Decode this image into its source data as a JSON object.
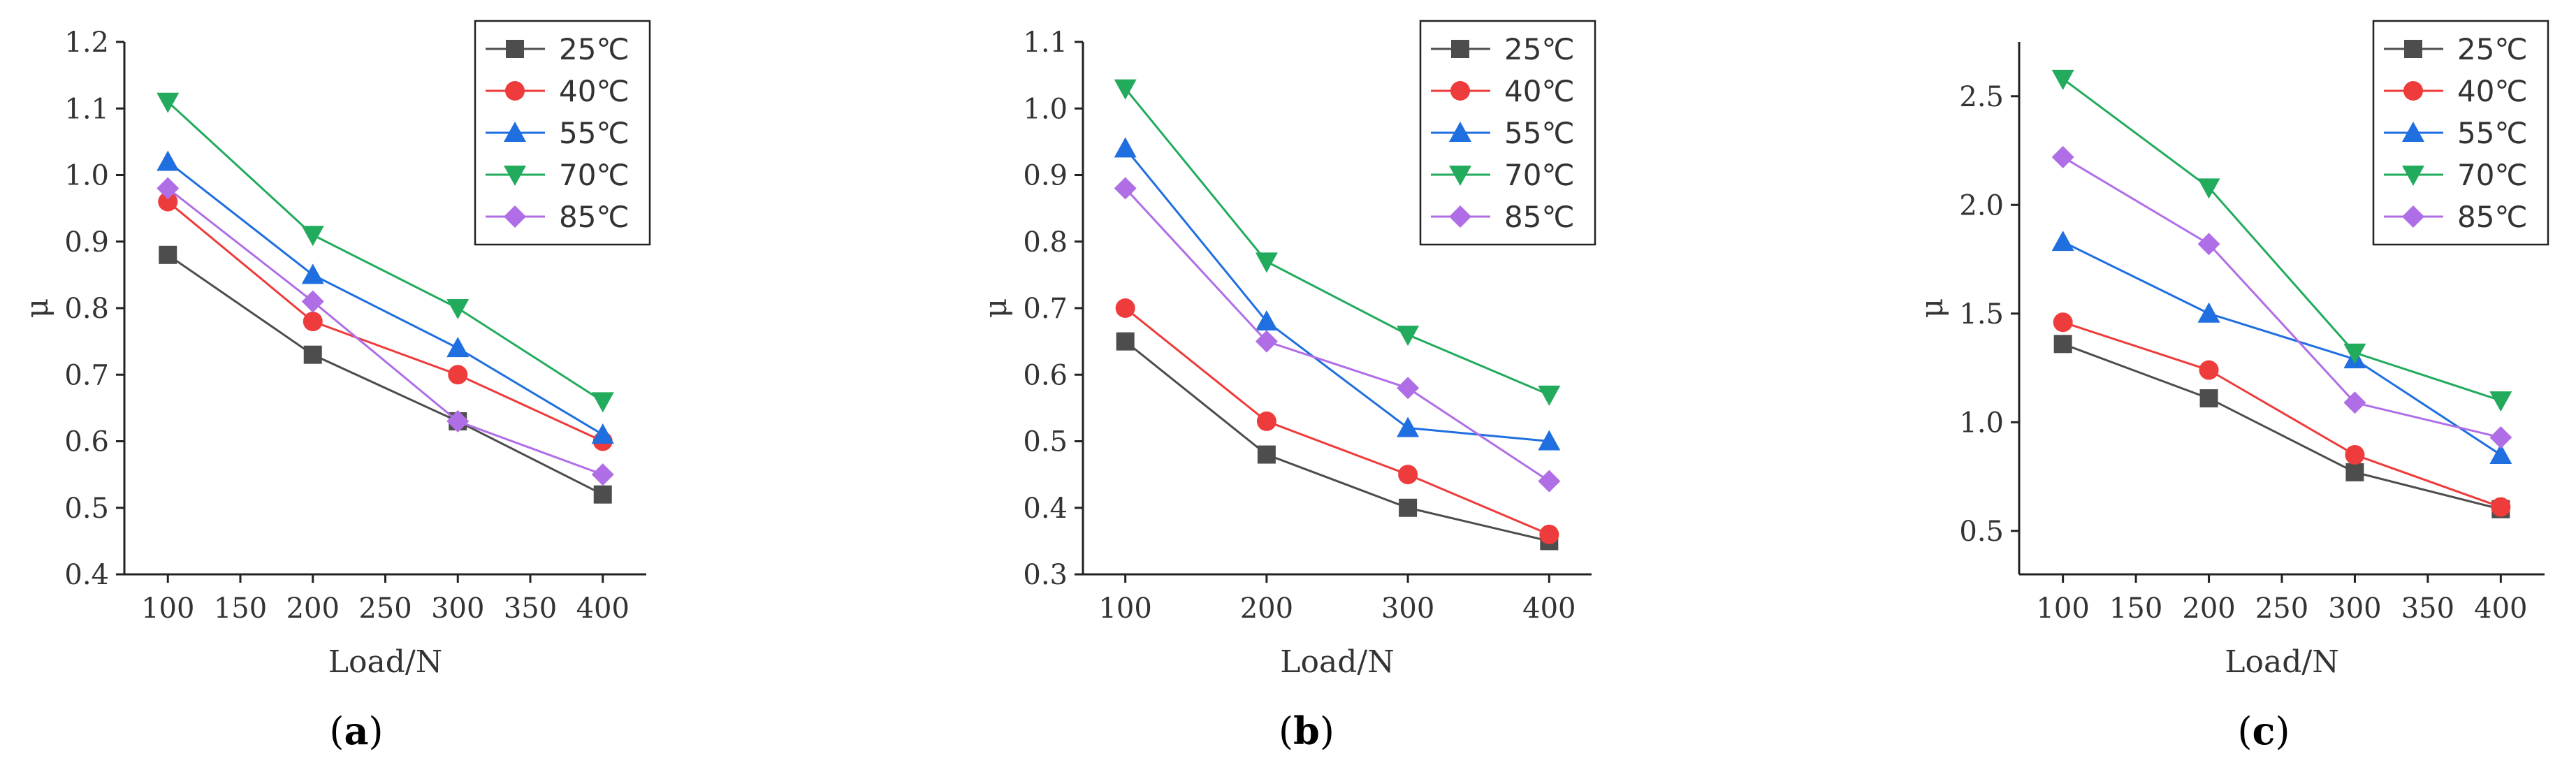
{
  "chart_data": [
    {
      "type": "line",
      "panel_label": "a",
      "xlabel": "Load/N",
      "ylabel": "μ",
      "x": [
        100,
        200,
        300,
        400
      ],
      "xlim": [
        70,
        430
      ],
      "xticks": [
        100,
        150,
        200,
        250,
        300,
        350,
        400
      ],
      "ylim": [
        0.4,
        1.2
      ],
      "yticks": [
        "0.4",
        "0.5",
        "0.6",
        "0.7",
        "0.8",
        "0.9",
        "1.0",
        "1.1",
        "1.2"
      ],
      "legend_position": "top-right",
      "series": [
        {
          "name": "25℃",
          "values": [
            0.88,
            0.73,
            0.63,
            0.52
          ]
        },
        {
          "name": "40℃",
          "values": [
            0.96,
            0.78,
            0.7,
            0.6
          ]
        },
        {
          "name": "55℃",
          "values": [
            1.02,
            0.85,
            0.74,
            0.61
          ]
        },
        {
          "name": "70℃",
          "values": [
            1.11,
            0.91,
            0.8,
            0.66
          ]
        },
        {
          "name": "85℃",
          "values": [
            0.98,
            0.81,
            0.63,
            0.55
          ]
        }
      ]
    },
    {
      "type": "line",
      "panel_label": "b",
      "xlabel": "Load/N",
      "ylabel": "μ",
      "x": [
        100,
        200,
        300,
        400
      ],
      "xlim": [
        70,
        430
      ],
      "xticks": [
        100,
        200,
        300,
        400
      ],
      "ylim": [
        0.3,
        1.1
      ],
      "yticks": [
        "0.3",
        "0.4",
        "0.5",
        "0.6",
        "0.7",
        "0.8",
        "0.9",
        "1.0",
        "1.1"
      ],
      "legend_position": "top-right",
      "series": [
        {
          "name": "25℃",
          "values": [
            0.65,
            0.48,
            0.4,
            0.35
          ]
        },
        {
          "name": "40℃",
          "values": [
            0.7,
            0.53,
            0.45,
            0.36
          ]
        },
        {
          "name": "55℃",
          "values": [
            0.94,
            0.68,
            0.52,
            0.5
          ]
        },
        {
          "name": "70℃",
          "values": [
            1.03,
            0.77,
            0.66,
            0.57
          ]
        },
        {
          "name": "85℃",
          "values": [
            0.88,
            0.65,
            0.58,
            0.44
          ]
        }
      ]
    },
    {
      "type": "line",
      "panel_label": "c",
      "xlabel": "Load/N",
      "ylabel": "μ",
      "x": [
        100,
        200,
        300,
        400
      ],
      "xlim": [
        70,
        430
      ],
      "xticks": [
        100,
        150,
        200,
        250,
        300,
        350,
        400
      ],
      "ylim": [
        0.3,
        2.75
      ],
      "yticks": [
        "0.5",
        "1.0",
        "1.5",
        "2.0",
        "2.5"
      ],
      "legend_position": "top-right",
      "series": [
        {
          "name": "25℃",
          "values": [
            1.36,
            1.11,
            0.77,
            0.6
          ]
        },
        {
          "name": "40℃",
          "values": [
            1.46,
            1.24,
            0.85,
            0.61
          ]
        },
        {
          "name": "55℃",
          "values": [
            1.83,
            1.5,
            1.29,
            0.85
          ]
        },
        {
          "name": "70℃",
          "values": [
            2.58,
            2.08,
            1.32,
            1.1
          ]
        },
        {
          "name": "85℃",
          "values": [
            2.22,
            1.82,
            1.09,
            0.93
          ]
        }
      ]
    }
  ],
  "series_style": [
    {
      "color": "#4d4d4d",
      "marker": "square"
    },
    {
      "color": "#ee3b3b",
      "marker": "circle"
    },
    {
      "color": "#1f6fe0",
      "marker": "triangle-up"
    },
    {
      "color": "#22ab5c",
      "marker": "triangle-down"
    },
    {
      "color": "#b06ee6",
      "marker": "diamond"
    }
  ]
}
